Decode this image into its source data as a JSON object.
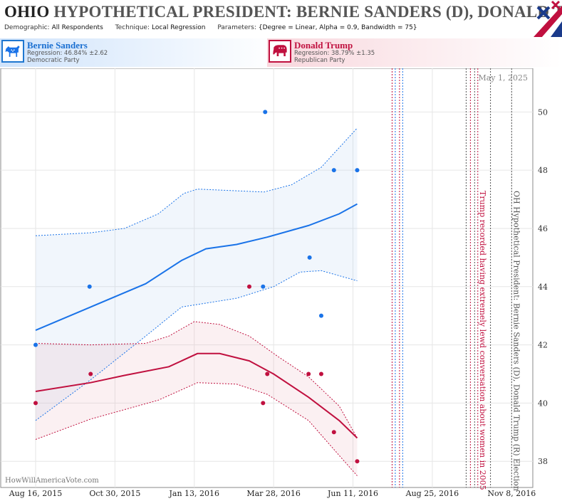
{
  "header": {
    "title_state": "OHIO",
    "title_rest": "HYPOTHETICAL PRESIDENT: BERNIE SANDERS (D), DONALD TRUMP (R)",
    "demographic_label": "Demographic:",
    "demographic_value": "All Respondents",
    "technique_label": "Technique:",
    "technique_value": "Local Regression",
    "parameters_label": "Parameters:",
    "parameters_value": "{Degree = Linear, Alpha = 0.9, Bandwidth = 75}"
  },
  "candidates": {
    "dem": {
      "name": "Bernie Sanders",
      "regression": "Regression: 46.84% ±2.62",
      "party": "Democratic Party",
      "color": "#1a73e8"
    },
    "rep": {
      "name": "Donald Trump",
      "regression": "Regression: 38.79% ±1.35",
      "party": "Republican Party",
      "color": "#c0103f"
    }
  },
  "watermark": "HowWillAmericaVote.com",
  "current_date_label": "May 1, 2025",
  "chart_data": {
    "type": "scatter",
    "x_axis": {
      "tick_labels": [
        "Aug 16, 2015",
        "Oct 30, 2015",
        "Jan 13, 2016",
        "Mar 28, 2016",
        "Jun 11, 2016",
        "Aug 25, 2016",
        "Nov 8, 2016"
      ],
      "range": [
        "2015-08-16",
        "2016-11-28"
      ]
    },
    "y_axis": {
      "ticks": [
        38,
        40,
        42,
        44,
        46,
        48,
        50
      ],
      "range": [
        37.1,
        51.5
      ],
      "position": "right"
    },
    "grid": true,
    "series": [
      {
        "name": "Bernie Sanders",
        "color": "#1a73e8",
        "points": [
          {
            "x": "2015-08-16",
            "y": 42
          },
          {
            "x": "2015-10-06",
            "y": 44
          },
          {
            "x": "2016-03-20",
            "y": 50
          },
          {
            "x": "2016-03-18",
            "y": 44
          },
          {
            "x": "2016-05-01",
            "y": 45
          },
          {
            "x": "2016-05-12",
            "y": 43
          },
          {
            "x": "2016-05-24",
            "y": 48
          },
          {
            "x": "2016-06-15",
            "y": 48
          }
        ],
        "trend": [
          {
            "x": "2015-08-16",
            "y": 42.5
          },
          {
            "x": "2015-10-07",
            "y": 43.3
          },
          {
            "x": "2015-11-28",
            "y": 44.1
          },
          {
            "x": "2016-01-01",
            "y": 44.9
          },
          {
            "x": "2016-01-24",
            "y": 45.3
          },
          {
            "x": "2016-02-22",
            "y": 45.45
          },
          {
            "x": "2016-03-22",
            "y": 45.7
          },
          {
            "x": "2016-04-30",
            "y": 46.1
          },
          {
            "x": "2016-05-29",
            "y": 46.5
          },
          {
            "x": "2016-06-15",
            "y": 46.84
          }
        ],
        "upper": [
          {
            "x": "2015-08-16",
            "y": 45.75
          },
          {
            "x": "2015-10-07",
            "y": 45.85
          },
          {
            "x": "2015-11-08",
            "y": 46.0
          },
          {
            "x": "2015-12-10",
            "y": 46.5
          },
          {
            "x": "2016-01-03",
            "y": 47.2
          },
          {
            "x": "2016-01-16",
            "y": 47.35
          },
          {
            "x": "2016-03-19",
            "y": 47.25
          },
          {
            "x": "2016-04-14",
            "y": 47.5
          },
          {
            "x": "2016-05-12",
            "y": 48.1
          },
          {
            "x": "2016-06-15",
            "y": 49.45
          }
        ],
        "lower": [
          {
            "x": "2015-08-16",
            "y": 39.4
          },
          {
            "x": "2015-10-07",
            "y": 40.8
          },
          {
            "x": "2015-11-28",
            "y": 42.3
          },
          {
            "x": "2016-01-01",
            "y": 43.3
          },
          {
            "x": "2016-02-22",
            "y": 43.6
          },
          {
            "x": "2016-03-28",
            "y": 44.0
          },
          {
            "x": "2016-04-22",
            "y": 44.5
          },
          {
            "x": "2016-05-12",
            "y": 44.55
          },
          {
            "x": "2016-06-15",
            "y": 44.2
          }
        ]
      },
      {
        "name": "Donald Trump",
        "color": "#c0103f",
        "points": [
          {
            "x": "2015-08-16",
            "y": 40
          },
          {
            "x": "2015-10-07",
            "y": 41
          },
          {
            "x": "2016-03-05",
            "y": 44
          },
          {
            "x": "2016-03-18",
            "y": 40
          },
          {
            "x": "2016-03-22",
            "y": 41
          },
          {
            "x": "2016-04-30",
            "y": 41
          },
          {
            "x": "2016-05-12",
            "y": 41
          },
          {
            "x": "2016-05-24",
            "y": 39
          },
          {
            "x": "2016-06-15",
            "y": 38
          }
        ],
        "trend": [
          {
            "x": "2015-08-16",
            "y": 40.4
          },
          {
            "x": "2015-10-07",
            "y": 40.7
          },
          {
            "x": "2015-11-08",
            "y": 40.95
          },
          {
            "x": "2015-12-20",
            "y": 41.25
          },
          {
            "x": "2016-01-16",
            "y": 41.7
          },
          {
            "x": "2016-02-06",
            "y": 41.7
          },
          {
            "x": "2016-03-05",
            "y": 41.45
          },
          {
            "x": "2016-03-28",
            "y": 41.0
          },
          {
            "x": "2016-04-30",
            "y": 40.2
          },
          {
            "x": "2016-05-29",
            "y": 39.4
          },
          {
            "x": "2016-06-15",
            "y": 38.8
          }
        ],
        "upper": [
          {
            "x": "2015-08-16",
            "y": 42.05
          },
          {
            "x": "2015-10-07",
            "y": 42.0
          },
          {
            "x": "2015-11-28",
            "y": 42.05
          },
          {
            "x": "2015-12-20",
            "y": 42.3
          },
          {
            "x": "2016-01-13",
            "y": 42.8
          },
          {
            "x": "2016-02-06",
            "y": 42.7
          },
          {
            "x": "2016-03-05",
            "y": 42.3
          },
          {
            "x": "2016-04-01",
            "y": 41.6
          },
          {
            "x": "2016-04-30",
            "y": 40.9
          },
          {
            "x": "2016-05-29",
            "y": 39.9
          },
          {
            "x": "2016-06-15",
            "y": 38.8
          }
        ],
        "lower": [
          {
            "x": "2015-08-16",
            "y": 38.75
          },
          {
            "x": "2015-10-07",
            "y": 39.45
          },
          {
            "x": "2015-12-10",
            "y": 40.1
          },
          {
            "x": "2016-01-16",
            "y": 40.7
          },
          {
            "x": "2016-02-22",
            "y": 40.65
          },
          {
            "x": "2016-03-22",
            "y": 40.3
          },
          {
            "x": "2016-04-30",
            "y": 39.4
          },
          {
            "x": "2016-05-29",
            "y": 38.2
          },
          {
            "x": "2016-06-15",
            "y": 37.5
          }
        ]
      }
    ],
    "events": [
      {
        "date": "2016-07-18",
        "label": "",
        "color": "#c0103f"
      },
      {
        "date": "2016-07-21",
        "label": "",
        "color": "#1a73e8"
      },
      {
        "date": "2016-07-25",
        "label": "",
        "color": "#c0103f"
      },
      {
        "date": "2016-07-28",
        "label": "",
        "color": "#1a73e8"
      },
      {
        "date": "2016-09-26",
        "label": "",
        "color": "#555555"
      },
      {
        "date": "2016-09-30",
        "label": "",
        "color": "#c0103f"
      },
      {
        "date": "2016-10-04",
        "label": "",
        "color": "#555555"
      },
      {
        "date": "2016-10-07",
        "label": "Trump recorded having extremely lewd conversation about women in 2005",
        "color": "#c0103f"
      },
      {
        "date": "2016-10-19",
        "label": "",
        "color": "#555555"
      },
      {
        "date": "2016-11-08",
        "label": "OH Hypothetical President: Bernie Sanders (D), Donald Trump (R) Election",
        "color": "#555555"
      }
    ]
  }
}
